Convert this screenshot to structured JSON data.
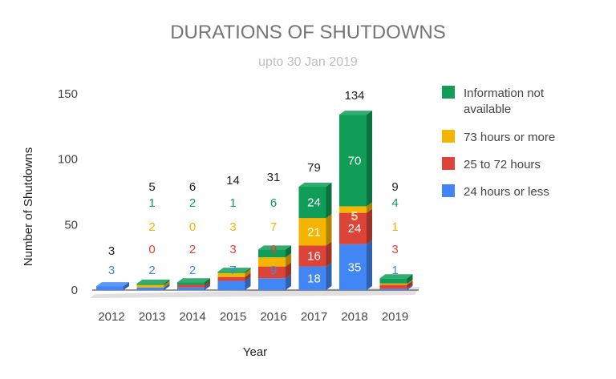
{
  "chart_data": {
    "type": "bar",
    "stacked": true,
    "three_d": true,
    "title": "DURATIONS OF SHUTDOWNS",
    "subtitle": "upto 30 Jan 2019",
    "xlabel": "Year",
    "ylabel": "Number of Shutdowns",
    "ylim": [
      0,
      150
    ],
    "yticks": [
      "0",
      "50",
      "100",
      "150"
    ],
    "categories": [
      "2012",
      "2013",
      "2014",
      "2015",
      "2016",
      "2017",
      "2018",
      "2019"
    ],
    "series": [
      {
        "name": "24 hours or less",
        "color": "#4285f4",
        "values": [
          3,
          2,
          2,
          7,
          9,
          18,
          35,
          1
        ],
        "labels": [
          "3",
          "2",
          "2",
          "7",
          "9",
          "18",
          "35",
          "1"
        ]
      },
      {
        "name": "25 to 72 hours",
        "color": "#db4437",
        "values": [
          0,
          0,
          2,
          3,
          9,
          16,
          24,
          3
        ],
        "labels": [
          "",
          "0",
          "2",
          "3",
          "9",
          "16",
          "24",
          "3"
        ]
      },
      {
        "name": "73 hours or more",
        "color": "#f4b400",
        "values": [
          0,
          2,
          0,
          3,
          7,
          21,
          5,
          1
        ],
        "labels": [
          "",
          "2",
          "0",
          "3",
          "7",
          "21",
          "5",
          "1"
        ]
      },
      {
        "name": "Information not available",
        "color": "#0f9d58",
        "values": [
          0,
          1,
          2,
          1,
          6,
          24,
          70,
          4
        ],
        "labels": [
          "",
          "1",
          "2",
          "1",
          "6",
          "24",
          "70",
          "4"
        ]
      }
    ],
    "totals": [
      "3",
      "5",
      "6",
      "14",
      "31",
      "79",
      "134",
      "9"
    ],
    "legend": {
      "position": "right"
    },
    "legend_order": [
      3,
      2,
      1,
      0
    ]
  }
}
